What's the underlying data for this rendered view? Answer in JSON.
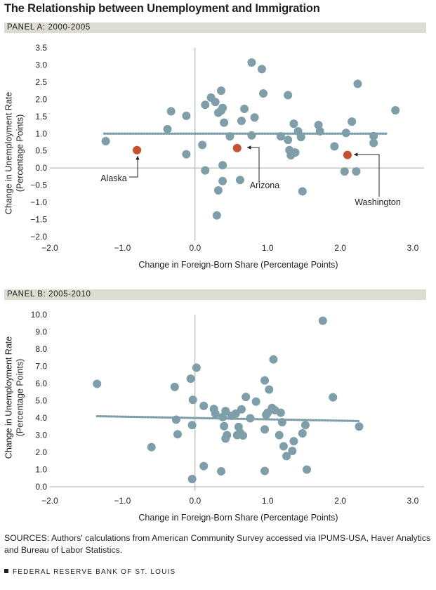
{
  "title": "The Relationship between Unemployment and Immigration",
  "sources": "SOURCES: Authors' calculations from American Community Survey accessed via IPUMS-USA, Haver Analytics and Bureau of Labor Statistics.",
  "footer": "FEDERAL RESERVE BANK OF ST. LOUIS",
  "colors": {
    "point": "#7e9ea9",
    "highlight": "#c9502c",
    "trend": "#7e9ea9",
    "band": "#dcdcd2"
  },
  "chart_data": [
    {
      "type": "scatter",
      "panel_label": "PANEL A: 2000-2005",
      "xlabel": "Change in Foreign-Born Share (Percentage Points)",
      "ylabel": [
        "Change in Unemployment Rate",
        "(Percentage Points)"
      ],
      "xlim": [
        -2.0,
        3.0
      ],
      "ylim": [
        -2.0,
        3.5
      ],
      "x_ticks": [
        "−2.0",
        "−1.0",
        "0.0",
        "1.0",
        "2.0",
        "3.0"
      ],
      "y_ticks": [
        "−2.0",
        "−1.5",
        "−1.0",
        "−0.5",
        "0.0",
        "0.5",
        "1.0",
        "1.5",
        "2.0",
        "2.5",
        "3.0",
        "3.5"
      ],
      "trend_line": {
        "x": [
          -1.25,
          2.65
        ],
        "y": [
          1.0,
          1.0
        ]
      },
      "points": [
        [
          -1.23,
          0.78
        ],
        [
          -0.38,
          1.13
        ],
        [
          -0.33,
          1.65
        ],
        [
          -0.12,
          1.52
        ],
        [
          -0.12,
          0.4
        ],
        [
          0.1,
          0.67
        ],
        [
          0.14,
          1.84
        ],
        [
          0.14,
          -0.07
        ],
        [
          0.22,
          2.05
        ],
        [
          0.28,
          1.92
        ],
        [
          0.3,
          -1.38
        ],
        [
          0.32,
          1.61
        ],
        [
          0.32,
          -0.65
        ],
        [
          0.36,
          1.67
        ],
        [
          0.36,
          2.25
        ],
        [
          0.38,
          1.75
        ],
        [
          0.38,
          0.08
        ],
        [
          0.38,
          -0.38
        ],
        [
          0.4,
          1.32
        ],
        [
          0.48,
          0.92
        ],
        [
          0.62,
          -0.35
        ],
        [
          0.64,
          1.37
        ],
        [
          0.68,
          1.72
        ],
        [
          0.78,
          3.07
        ],
        [
          0.78,
          0.95
        ],
        [
          0.82,
          1.47
        ],
        [
          0.92,
          2.88
        ],
        [
          0.94,
          2.17
        ],
        [
          1.18,
          0.92
        ],
        [
          1.28,
          2.12
        ],
        [
          1.28,
          0.82
        ],
        [
          1.3,
          0.52
        ],
        [
          1.32,
          0.37
        ],
        [
          1.36,
          1.29
        ],
        [
          1.38,
          0.45
        ],
        [
          1.42,
          1.07
        ],
        [
          1.46,
          0.9
        ],
        [
          1.48,
          -0.68
        ],
        [
          1.7,
          1.25
        ],
        [
          1.72,
          1.07
        ],
        [
          1.92,
          0.63
        ],
        [
          2.06,
          -0.1
        ],
        [
          2.08,
          1.02
        ],
        [
          2.16,
          1.35
        ],
        [
          2.22,
          -0.1
        ],
        [
          2.24,
          2.45
        ],
        [
          2.46,
          0.93
        ],
        [
          2.46,
          0.73
        ],
        [
          2.76,
          1.68
        ]
      ],
      "highlighted": [
        {
          "name": "Alaska",
          "x": -0.8,
          "y": 0.52
        },
        {
          "name": "Arizona",
          "x": 0.58,
          "y": 0.58
        },
        {
          "name": "Washington",
          "x": 2.1,
          "y": 0.38
        }
      ]
    },
    {
      "type": "scatter",
      "panel_label": "PANEL B: 2005-2010",
      "xlabel": "Change in Foreign-Born Share (Percentage Points)",
      "ylabel": [
        "Change in Unemployment Rate",
        "(Percentage Points)"
      ],
      "xlim": [
        -2.0,
        3.0
      ],
      "ylim": [
        0.0,
        10.0
      ],
      "x_ticks": [
        "−2.0",
        "−1.0",
        "0.0",
        "1.0",
        "2.0",
        "3.0"
      ],
      "y_ticks": [
        "0.0",
        "1.0",
        "2.0",
        "3.0",
        "4.0",
        "5.0",
        "6.0",
        "7.0",
        "8.0",
        "9.0",
        "10.0"
      ],
      "trend_line": {
        "x": [
          -1.35,
          2.25
        ],
        "y": [
          4.1,
          3.82
        ]
      },
      "points": [
        [
          -1.35,
          5.98
        ],
        [
          -0.6,
          2.3
        ],
        [
          -0.28,
          5.8
        ],
        [
          -0.26,
          3.9
        ],
        [
          -0.24,
          3.05
        ],
        [
          -0.06,
          6.28
        ],
        [
          -0.04,
          3.58
        ],
        [
          -0.04,
          0.45
        ],
        [
          -0.03,
          5.05
        ],
        [
          0.02,
          6.92
        ],
        [
          0.12,
          4.7
        ],
        [
          0.12,
          1.2
        ],
        [
          0.26,
          4.52
        ],
        [
          0.28,
          4.25
        ],
        [
          0.36,
          0.9
        ],
        [
          0.38,
          4.05
        ],
        [
          0.4,
          3.52
        ],
        [
          0.42,
          4.4
        ],
        [
          0.42,
          2.8
        ],
        [
          0.44,
          3.0
        ],
        [
          0.5,
          4.12
        ],
        [
          0.56,
          4.25
        ],
        [
          0.58,
          3.0
        ],
        [
          0.6,
          3.48
        ],
        [
          0.62,
          3.15
        ],
        [
          0.64,
          4.5
        ],
        [
          0.66,
          2.98
        ],
        [
          0.7,
          5.22
        ],
        [
          0.76,
          3.98
        ],
        [
          0.84,
          4.95
        ],
        [
          0.96,
          6.18
        ],
        [
          0.96,
          3.33
        ],
        [
          0.96,
          0.92
        ],
        [
          0.98,
          4.18
        ],
        [
          1.0,
          4.3
        ],
        [
          1.02,
          5.65
        ],
        [
          1.06,
          4.58
        ],
        [
          1.08,
          7.4
        ],
        [
          1.1,
          4.45
        ],
        [
          1.16,
          3.0
        ],
        [
          1.18,
          4.3
        ],
        [
          1.2,
          3.75
        ],
        [
          1.22,
          2.35
        ],
        [
          1.26,
          1.78
        ],
        [
          1.34,
          2.08
        ],
        [
          1.36,
          2.65
        ],
        [
          1.48,
          3.1
        ],
        [
          1.52,
          3.58
        ],
        [
          1.54,
          1.0
        ],
        [
          1.76,
          9.65
        ],
        [
          1.9,
          5.2
        ],
        [
          2.26,
          3.5
        ]
      ],
      "highlighted": []
    }
  ]
}
